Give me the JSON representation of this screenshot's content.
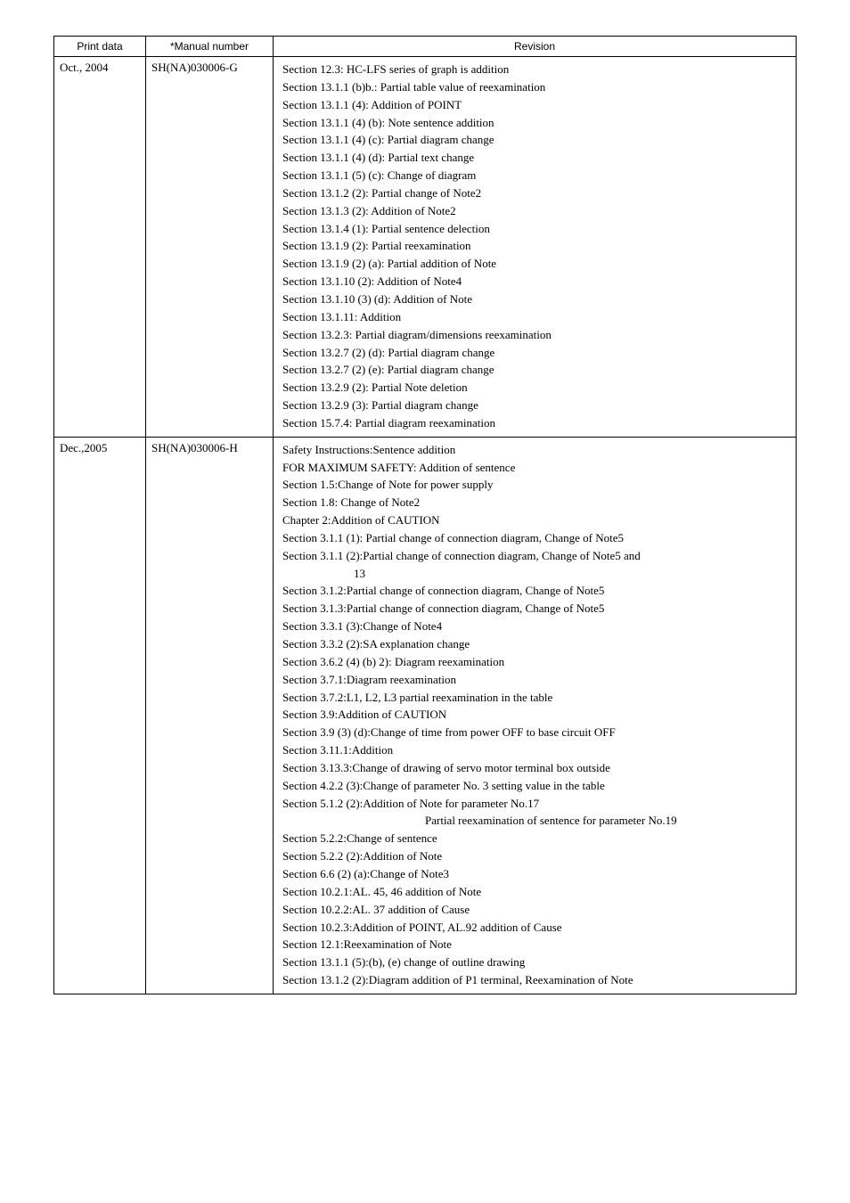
{
  "headers": {
    "print_data": "Print data",
    "manual_number": "*Manual number",
    "revision": "Revision"
  },
  "rows": [
    {
      "print_data": "Oct., 2004",
      "manual_number": "SH(NA)030006-G",
      "revisions": [
        {
          "text": "Section 12.3: HC-LFS series of graph is addition"
        },
        {
          "text": "Section 13.1.1 (b)b.: Partial table value of reexamination"
        },
        {
          "text": "Section 13.1.1 (4): Addition of POINT"
        },
        {
          "text": "Section 13.1.1 (4) (b): Note sentence addition"
        },
        {
          "text": "Section 13.1.1 (4) (c): Partial diagram change"
        },
        {
          "text": "Section 13.1.1 (4) (d): Partial text change"
        },
        {
          "text": "Section 13.1.1 (5) (c): Change of diagram"
        },
        {
          "text": "Section 13.1.2 (2): Partial change of Note2"
        },
        {
          "text": "Section 13.1.3 (2): Addition of Note2"
        },
        {
          "text": "Section 13.1.4 (1): Partial sentence delection"
        },
        {
          "text": "Section 13.1.9 (2): Partial reexamination"
        },
        {
          "text": "Section 13.1.9 (2) (a): Partial addition of Note"
        },
        {
          "text": "Section 13.1.10 (2): Addition of Note4"
        },
        {
          "text": "Section 13.1.10 (3) (d): Addition of Note"
        },
        {
          "text": "Section 13.1.11: Addition"
        },
        {
          "text": "Section 13.2.3: Partial diagram/dimensions reexamination"
        },
        {
          "text": "Section 13.2.7 (2) (d): Partial diagram change"
        },
        {
          "text": "Section 13.2.7 (2) (e): Partial diagram change"
        },
        {
          "text": "Section 13.2.9 (2): Partial Note deletion"
        },
        {
          "text": "Section 13.2.9 (3): Partial diagram change"
        },
        {
          "text": "Section 15.7.4: Partial diagram reexamination"
        }
      ]
    },
    {
      "print_data": "Dec.,2005",
      "manual_number": "SH(NA)030006-H",
      "revisions": [
        {
          "text": "Safety Instructions:Sentence addition"
        },
        {
          "text": "FOR MAXIMUM SAFETY: Addition of sentence"
        },
        {
          "text": "Section 1.5:Change of Note for power supply"
        },
        {
          "text": "Section 1.8: Change of Note2"
        },
        {
          "text": "Chapter 2:Addition of CAUTION"
        },
        {
          "text": "Section 3.1.1 (1): Partial change of connection diagram, Change of Note5"
        },
        {
          "text": "Section 3.1.1 (2):Partial change of connection diagram, Change of Note5 and"
        },
        {
          "text": "13",
          "indent": 1
        },
        {
          "text": "Section 3.1.2:Partial change of connection diagram, Change of Note5"
        },
        {
          "text": "Section 3.1.3:Partial change of connection diagram, Change of Note5"
        },
        {
          "text": "Section 3.3.1 (3):Change of Note4"
        },
        {
          "text": "Section 3.3.2 (2):SA explanation change"
        },
        {
          "text": "Section 3.6.2 (4) (b) 2): Diagram reexamination"
        },
        {
          "text": "Section 3.7.1:Diagram reexamination"
        },
        {
          "text": "Section 3.7.2:L1, L2, L3 partial reexamination in the table"
        },
        {
          "text": "Section 3.9:Addition of CAUTION"
        },
        {
          "text": "Section 3.9 (3) (d):Change of time from power OFF to base circuit OFF"
        },
        {
          "text": "Section 3.11.1:Addition"
        },
        {
          "text": "Section 3.13.3:Change of drawing of servo motor terminal box outside"
        },
        {
          "text": "Section 4.2.2 (3):Change of parameter No. 3 setting value in the table"
        },
        {
          "text": "Section 5.1.2 (2):Addition of Note for parameter No.17"
        },
        {
          "text": "Partial reexamination of sentence for parameter No.19",
          "indent": 2
        },
        {
          "text": "Section 5.2.2:Change of sentence"
        },
        {
          "text": "Section 5.2.2 (2):Addition of Note"
        },
        {
          "text": "Section 6.6 (2) (a):Change of Note3"
        },
        {
          "text": "Section 10.2.1:AL. 45, 46 addition of Note"
        },
        {
          "text": "Section 10.2.2:AL. 37 addition of Cause"
        },
        {
          "text": "Section 10.2.3:Addition of POINT, AL.92 addition of Cause"
        },
        {
          "text": "Section 12.1:Reexamination of Note"
        },
        {
          "text": "Section 13.1.1 (5):(b), (e) change of outline drawing"
        },
        {
          "text": "Section 13.1.2 (2):Diagram addition of P1 terminal, Reexamination of Note"
        }
      ]
    }
  ]
}
